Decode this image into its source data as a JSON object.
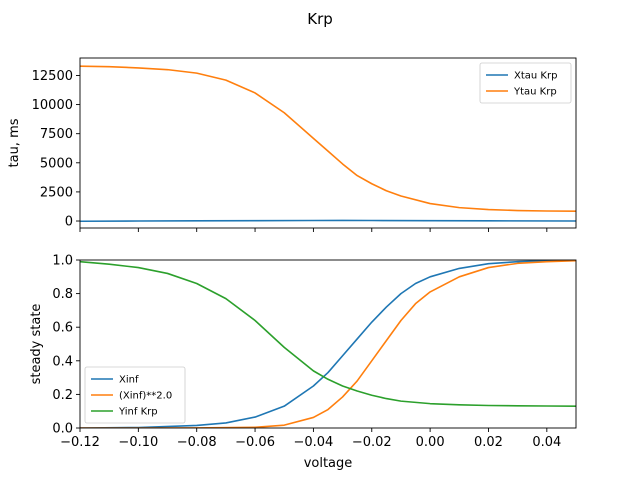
{
  "figure": {
    "title": "Krp"
  },
  "chart_data": [
    {
      "type": "line",
      "title": "",
      "xlabel": "",
      "ylabel": "tau, ms",
      "xlim": [
        -0.12,
        0.05
      ],
      "ylim": [
        -600,
        14000
      ],
      "xticks": [
        -0.12,
        -0.1,
        -0.08,
        -0.06,
        -0.04,
        -0.02,
        0.0,
        0.02,
        0.04
      ],
      "show_xticklabels": false,
      "yticks": [
        0,
        2500,
        5000,
        7500,
        10000,
        12500
      ],
      "ytick_labels": [
        "0",
        "2500",
        "5000",
        "7500",
        "10000",
        "12500"
      ],
      "legend_position": "top-right",
      "grid": false,
      "series": [
        {
          "name": "Xtau Krp",
          "color": "#1f77b4",
          "x": [
            -0.12,
            -0.1,
            -0.08,
            -0.06,
            -0.04,
            -0.03,
            -0.02,
            0.0,
            0.02,
            0.05
          ],
          "y": [
            -20,
            0,
            15,
            30,
            45,
            50,
            45,
            30,
            15,
            0
          ]
        },
        {
          "name": "Ytau Krp",
          "color": "#ff7f0e",
          "x": [
            -0.12,
            -0.11,
            -0.1,
            -0.09,
            -0.08,
            -0.07,
            -0.06,
            -0.05,
            -0.04,
            -0.035,
            -0.03,
            -0.025,
            -0.02,
            -0.015,
            -0.01,
            0.0,
            0.01,
            0.02,
            0.03,
            0.04,
            0.05
          ],
          "y": [
            13300,
            13250,
            13150,
            13000,
            12700,
            12100,
            11000,
            9300,
            7100,
            6000,
            4900,
            3900,
            3200,
            2600,
            2150,
            1500,
            1150,
            980,
            900,
            860,
            840
          ]
        }
      ]
    },
    {
      "type": "line",
      "title": "",
      "xlabel": "voltage",
      "ylabel": "steady state",
      "xlim": [
        -0.12,
        0.05
      ],
      "ylim": [
        0.0,
        1.0
      ],
      "xticks": [
        -0.12,
        -0.1,
        -0.08,
        -0.06,
        -0.04,
        -0.02,
        0.0,
        0.02,
        0.04
      ],
      "xtick_labels": [
        "−0.12",
        "−0.10",
        "−0.08",
        "−0.06",
        "−0.04",
        "−0.02",
        "0.00",
        "0.02",
        "0.04"
      ],
      "show_xticklabels": true,
      "yticks": [
        0.0,
        0.2,
        0.4,
        0.6,
        0.8,
        1.0
      ],
      "ytick_labels": [
        "0.0",
        "0.2",
        "0.4",
        "0.6",
        "0.8",
        "1.0"
      ],
      "legend_position": "bottom-left",
      "grid": false,
      "series": [
        {
          "name": "Xinf",
          "color": "#1f77b4",
          "x": [
            -0.12,
            -0.1,
            -0.08,
            -0.07,
            -0.06,
            -0.05,
            -0.04,
            -0.035,
            -0.03,
            -0.025,
            -0.02,
            -0.015,
            -0.01,
            -0.005,
            0.0,
            0.01,
            0.02,
            0.03,
            0.04,
            0.05
          ],
          "y": [
            0.0,
            0.003,
            0.015,
            0.03,
            0.065,
            0.13,
            0.25,
            0.33,
            0.43,
            0.53,
            0.63,
            0.72,
            0.8,
            0.86,
            0.9,
            0.95,
            0.978,
            0.99,
            0.995,
            0.998
          ]
        },
        {
          "name": "(Xinf)**2.0",
          "color": "#ff7f0e",
          "x": [
            -0.12,
            -0.1,
            -0.08,
            -0.06,
            -0.05,
            -0.04,
            -0.035,
            -0.03,
            -0.025,
            -0.02,
            -0.015,
            -0.01,
            -0.005,
            0.0,
            0.01,
            0.02,
            0.03,
            0.04,
            0.05
          ],
          "y": [
            0.0,
            0.0,
            0.0002,
            0.004,
            0.017,
            0.063,
            0.11,
            0.185,
            0.28,
            0.4,
            0.52,
            0.64,
            0.74,
            0.81,
            0.9,
            0.955,
            0.98,
            0.99,
            0.996
          ]
        },
        {
          "name": "Yinf Krp",
          "color": "#2ca02c",
          "x": [
            -0.12,
            -0.11,
            -0.1,
            -0.09,
            -0.08,
            -0.07,
            -0.06,
            -0.05,
            -0.04,
            -0.035,
            -0.03,
            -0.025,
            -0.02,
            -0.015,
            -0.01,
            0.0,
            0.01,
            0.02,
            0.03,
            0.04,
            0.05
          ],
          "y": [
            0.99,
            0.975,
            0.955,
            0.92,
            0.86,
            0.77,
            0.64,
            0.48,
            0.34,
            0.29,
            0.25,
            0.22,
            0.195,
            0.175,
            0.16,
            0.145,
            0.138,
            0.134,
            0.132,
            0.131,
            0.13
          ]
        }
      ]
    }
  ]
}
